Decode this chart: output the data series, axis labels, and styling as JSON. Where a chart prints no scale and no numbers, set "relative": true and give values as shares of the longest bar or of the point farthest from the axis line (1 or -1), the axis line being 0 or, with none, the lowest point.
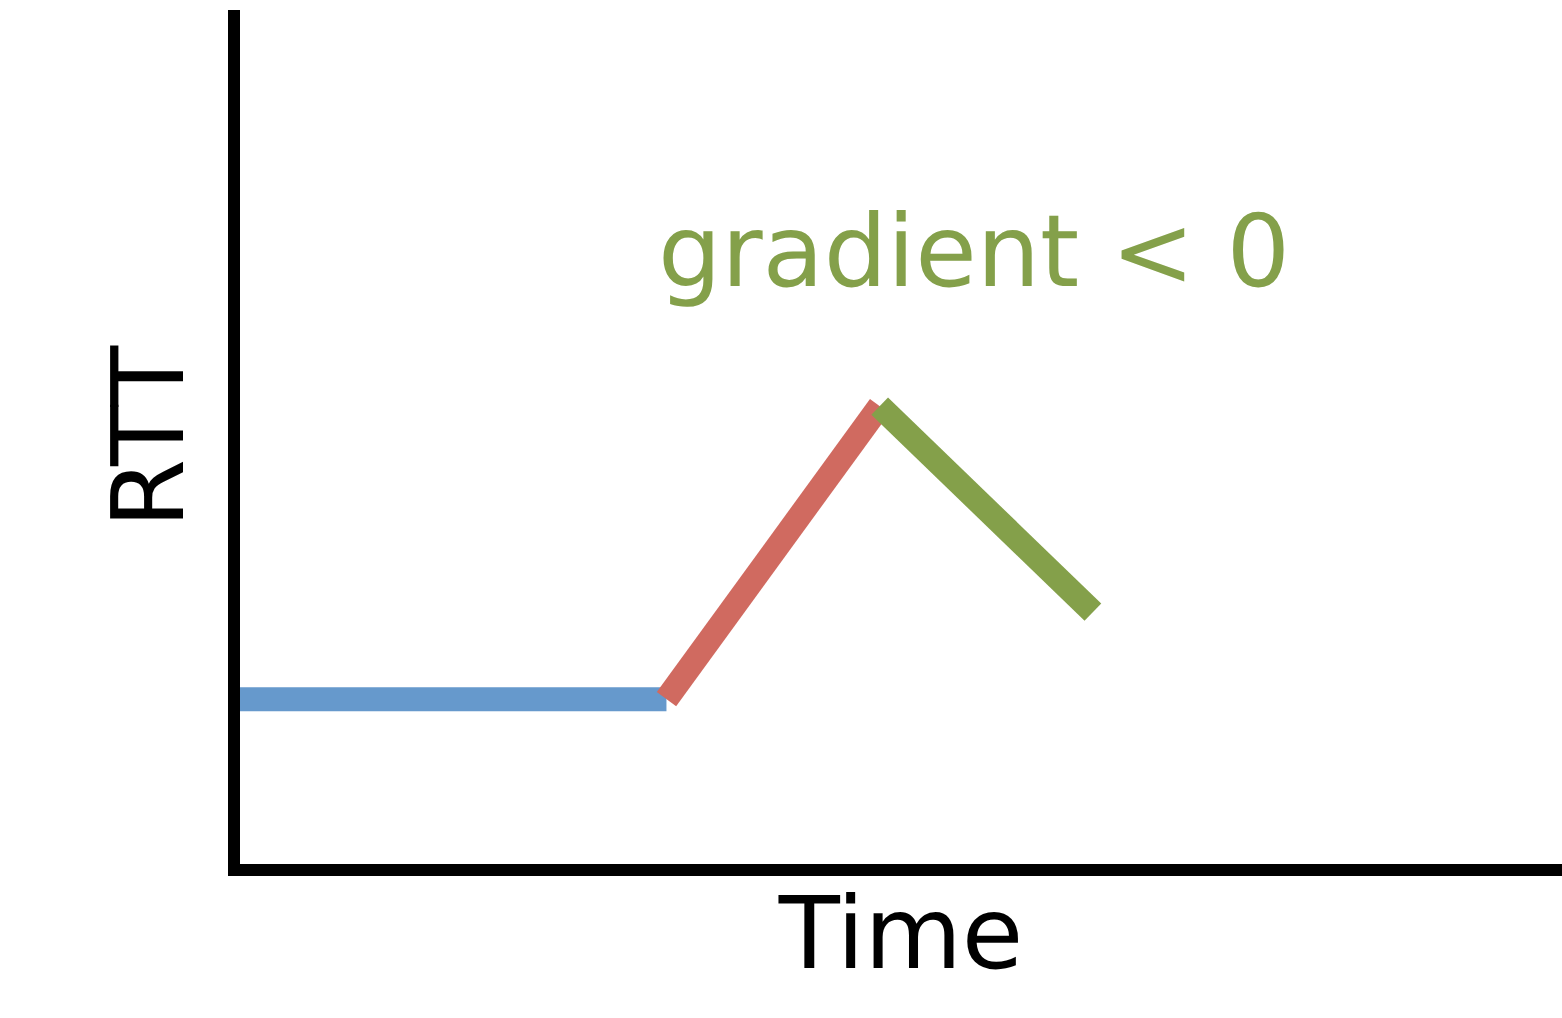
{
  "chart_data": {
    "type": "line",
    "relative": true,
    "xlabel": "Time",
    "ylabel": "RTT",
    "categories": [
      null,
      null,
      null,
      null,
      null,
      null,
      null
    ],
    "series": [
      {
        "color": "#6699cc",
        "values": [
          0.36,
          0.36,
          0.36,
          null,
          null,
          null,
          null
        ]
      },
      {
        "color": "#d06a60",
        "values": [
          null,
          null,
          0.36,
          1,
          null,
          null,
          null
        ]
      },
      {
        "color": "#84a04a",
        "values": [
          null,
          null,
          null,
          1,
          0.55,
          null,
          null
        ]
      }
    ],
    "annotations": [
      "gradient < 0"
    ],
    "tick_labels": false,
    "marker": "none",
    "line_style": "solid"
  }
}
